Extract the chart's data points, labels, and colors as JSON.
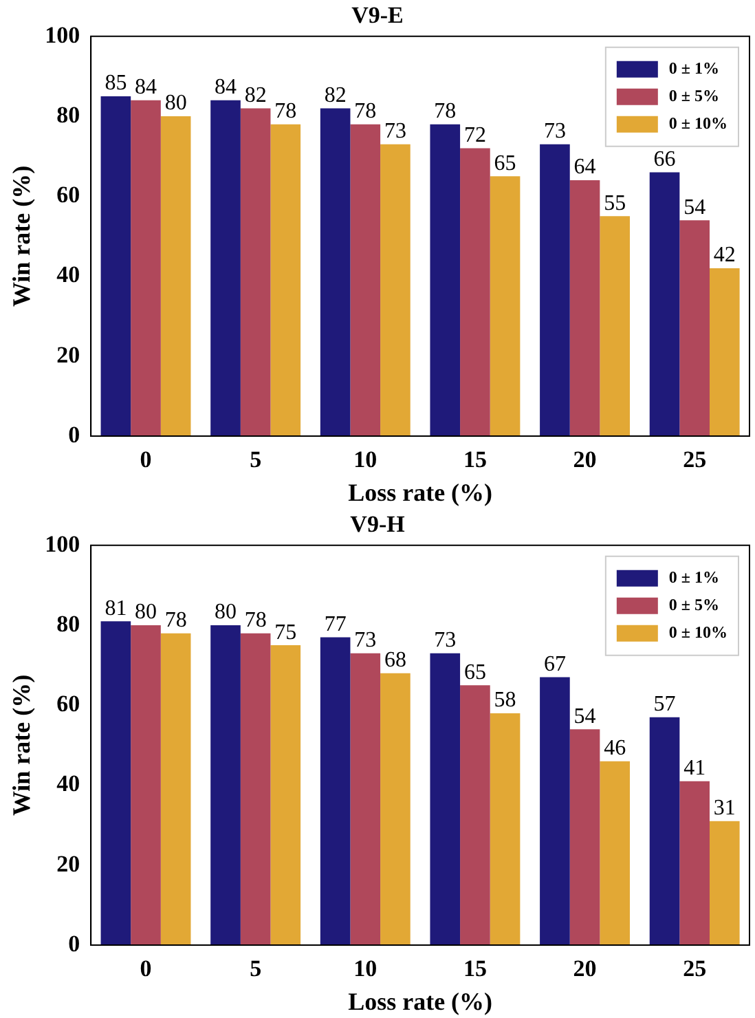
{
  "chart_data": [
    {
      "type": "bar",
      "title": "V9-E",
      "xlabel": "Loss rate (%)",
      "ylabel": "Win rate (%)",
      "categories": [
        "0",
        "5",
        "10",
        "15",
        "20",
        "25"
      ],
      "series": [
        {
          "name": "0 ± 1%",
          "color": "#1f1a7a",
          "values": [
            85,
            84,
            82,
            78,
            73,
            66
          ]
        },
        {
          "name": "0 ± 5%",
          "color": "#b0485b",
          "values": [
            84,
            82,
            78,
            72,
            64,
            54
          ]
        },
        {
          "name": "0 ± 10%",
          "color": "#e2a835",
          "values": [
            80,
            78,
            73,
            65,
            55,
            42
          ]
        }
      ],
      "ylim": [
        0,
        100
      ],
      "yticks": [
        0,
        20,
        40,
        60,
        80,
        100
      ],
      "data_labels": true,
      "legend": "top right",
      "grid": false
    },
    {
      "type": "bar",
      "title": "V9-H",
      "xlabel": "Loss rate (%)",
      "ylabel": "Win rate (%)",
      "categories": [
        "0",
        "5",
        "10",
        "15",
        "20",
        "25"
      ],
      "series": [
        {
          "name": "0 ± 1%",
          "color": "#1f1a7a",
          "values": [
            81,
            80,
            77,
            73,
            67,
            57
          ]
        },
        {
          "name": "0 ± 5%",
          "color": "#b0485b",
          "values": [
            80,
            78,
            73,
            65,
            54,
            41
          ]
        },
        {
          "name": "0 ± 10%",
          "color": "#e2a835",
          "values": [
            78,
            75,
            68,
            58,
            46,
            31
          ]
        }
      ],
      "ylim": [
        0,
        100
      ],
      "yticks": [
        0,
        20,
        40,
        60,
        80,
        100
      ],
      "data_labels": true,
      "legend": "top right",
      "grid": false
    }
  ]
}
